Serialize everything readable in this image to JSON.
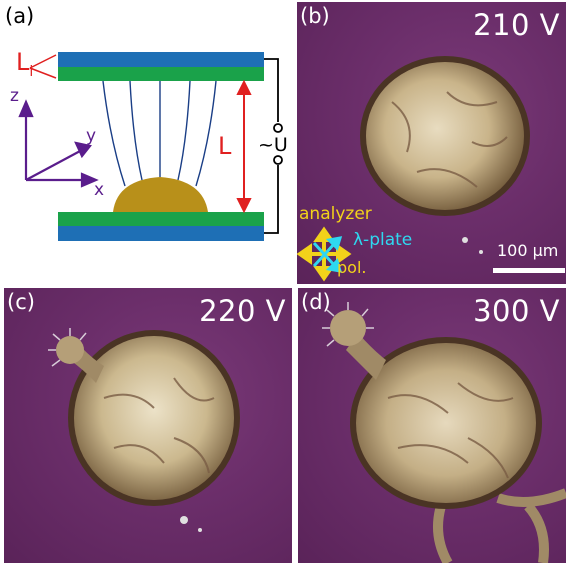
{
  "panel_a": {
    "label": "(a)",
    "li_label": "L",
    "li_sub": "i",
    "l_label": "L",
    "voltage_label": "~U",
    "axes": {
      "z": "z",
      "y": "y",
      "x": "x"
    },
    "colors": {
      "electrode": "#1e6fb5",
      "alignment_layer": "#1aa24a",
      "droplet": "#b8901a",
      "field_lines": "#1a3e86",
      "l_arrow": "#e02020",
      "axes": "#5a1d8c"
    }
  },
  "panel_b": {
    "label": "(b)",
    "voltage": "210 V",
    "analyzer_label": "analyzer",
    "lambda_label": "λ-plate",
    "pol_label": "pol.",
    "scale_label": "100 µm",
    "colors": {
      "analyzer": "#f2d21a",
      "lambda": "#2ed8f0"
    }
  },
  "panel_c": {
    "label": "(c)",
    "voltage": "220 V"
  },
  "panel_d": {
    "label": "(d)",
    "voltage": "300 V"
  }
}
